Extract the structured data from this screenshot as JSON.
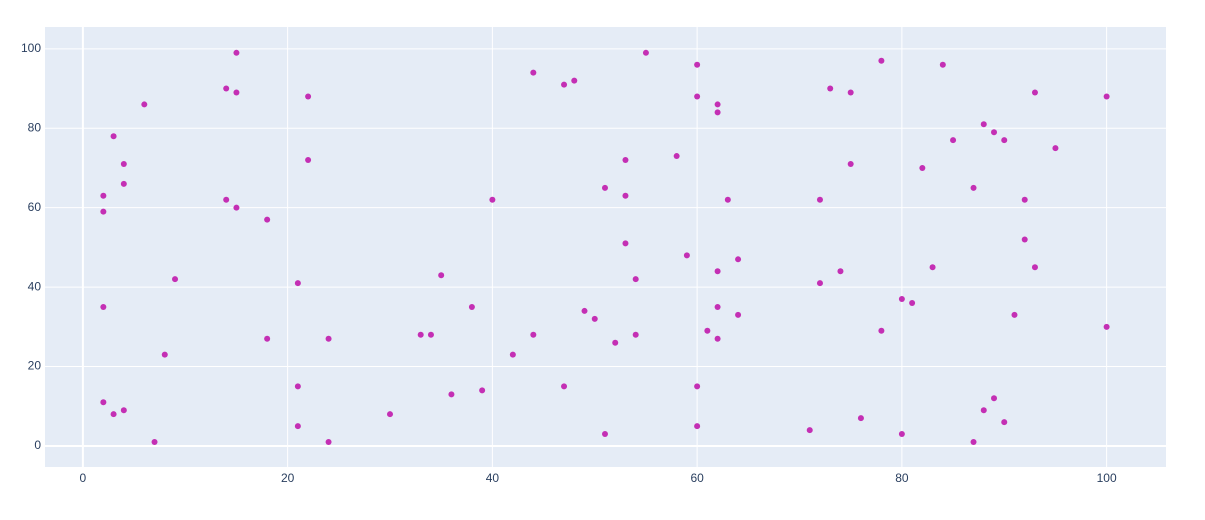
{
  "chart_data": {
    "type": "scatter",
    "x": [
      15,
      55,
      78,
      60,
      84,
      44,
      48,
      47,
      14,
      73,
      15,
      75,
      93,
      22,
      60,
      100,
      6,
      62,
      62,
      88,
      89,
      3,
      85,
      90,
      95,
      58,
      22,
      53,
      4,
      75,
      82,
      4,
      51,
      87,
      2,
      53,
      14,
      40,
      63,
      72,
      92,
      15,
      2,
      18,
      53,
      92,
      59,
      64,
      83,
      93,
      62,
      74,
      35,
      9,
      54,
      21,
      72,
      80,
      81,
      2,
      38,
      62,
      49,
      64,
      91,
      50,
      100,
      61,
      78,
      33,
      34,
      44,
      54,
      18,
      24,
      62,
      52,
      8,
      42,
      21,
      47,
      60,
      39,
      36,
      89,
      2,
      4,
      88,
      3,
      30,
      76,
      90,
      21,
      60,
      71,
      51,
      80,
      7,
      24,
      87
    ],
    "values": [
      99,
      99,
      97,
      96,
      96,
      94,
      92,
      91,
      90,
      90,
      89,
      89,
      89,
      88,
      88,
      88,
      86,
      86,
      84,
      81,
      79,
      78,
      77,
      77,
      75,
      73,
      72,
      72,
      71,
      71,
      70,
      66,
      65,
      65,
      63,
      63,
      62,
      62,
      62,
      62,
      62,
      60,
      59,
      57,
      51,
      52,
      48,
      47,
      45,
      45,
      44,
      44,
      43,
      42,
      42,
      41,
      41,
      37,
      36,
      35,
      35,
      35,
      34,
      33,
      33,
      32,
      30,
      29,
      29,
      28,
      28,
      28,
      28,
      27,
      27,
      27,
      26,
      23,
      23,
      15,
      15,
      15,
      14,
      13,
      12,
      11,
      9,
      9,
      8,
      8,
      7,
      6,
      5,
      5,
      4,
      3,
      3,
      1,
      1,
      1
    ],
    "color": "#c42fb4",
    "xlim": [
      -3.7,
      105.8
    ],
    "ylim": [
      -5.3,
      105.5
    ],
    "xticks": [
      0,
      20,
      40,
      60,
      80,
      100
    ],
    "yticks": [
      0,
      20,
      40,
      60,
      80,
      100
    ],
    "grid": true
  }
}
